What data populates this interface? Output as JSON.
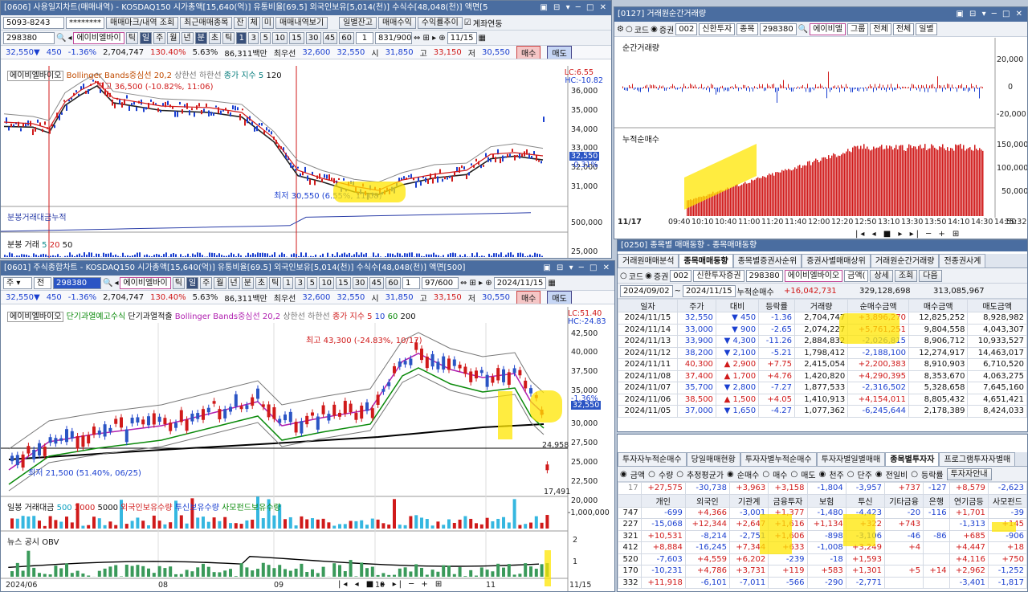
{
  "w1": {
    "title": "[0606] 사용일지차트(매매내역) - KOSDAQ150 시가총액[15,640(억)] 유통비율[69.5] 외국인보유[5,014(천)] 수식수[48,048(천)] 액면[5",
    "account": "5093-8243",
    "password": "********",
    "btns": [
      "매매마크/내역 조회",
      "최근매매종목",
      "잔",
      "체",
      "미",
      "매매내역보기",
      "일별잔고",
      "매매수익",
      "수익률추이"
    ],
    "chk": "계좌연동",
    "code": "298380",
    "name": "에이비엘바이",
    "periods": [
      "틱",
      "일",
      "주",
      "월",
      "년",
      "분",
      "초",
      "틱",
      "1",
      "3",
      "5",
      "10",
      "15",
      "30",
      "45",
      "60"
    ],
    "sel": "1",
    "count": "831/900",
    "date": "11/15",
    "quote": {
      "price": "32,550▼",
      "chg": "450",
      "pct": "-1.36%",
      "vol": "2,704,747",
      "ratio": "130.40%",
      "turn": "5.63%",
      "amt": "86,311백만",
      "ask_l": "최우선",
      "ask": "32,600",
      "bid": "32,550",
      "o_l": "시",
      "o": "31,850",
      "h_l": "고",
      "h": "33,150",
      "l_l": "저",
      "l": "30,550",
      "buy": "매수",
      "sell": "매도"
    },
    "legend": [
      "에이비엘바이오",
      "Bollinger Bands중심선 20,2",
      "상한선",
      "하한선",
      "종가 지수 5",
      "120"
    ],
    "lc": "LC:6.55",
    "hc": "HC:-10.82",
    "hi_note": "최고 36,500 (-10.82%, 11:06)",
    "lo_note": "최저 30,550 (6.55%, 11:08)",
    "yaxis": [
      "36,000",
      "35,000",
      "34,000",
      "33,000",
      "32,000",
      "31,000"
    ],
    "price_tag": "32,550",
    "pct_tag": "-0.31%",
    "p2": "분봉거래대금누적",
    "p2ax": [
      "500,000"
    ],
    "p3": "분봉 거래",
    "p3n": [
      "5",
      "20",
      "50"
    ],
    "p3ax": [
      "25,000"
    ]
  },
  "w2": {
    "title": "[0127] 거래원순간거래량",
    "code": "002",
    "broker": "신한투자",
    "type": "종목",
    "stock": "298380",
    "name": "에이비엘",
    "g": "그룹",
    "s1": "전체",
    "s2": "전체",
    "s3": "일별",
    "r1": "코드",
    "r2": "증권",
    "p1": "순간거래량",
    "p2": "누적순매수",
    "ax1": [
      "20,000",
      "0",
      "-20,000"
    ],
    "ax2": [
      "150,000",
      "100,000",
      "50,000"
    ],
    "xt": [
      "11/17",
      "09:40",
      "10:10",
      "10:40",
      "11:00",
      "11:20",
      "11:40",
      "12:00",
      "12:20",
      "12:50",
      "13:10",
      "13:30",
      "13:50",
      "14:10",
      "14:30",
      "14:50",
      "15:32"
    ]
  },
  "w3": {
    "title": "[0250] 종목별 매매동향 - 종목매매동향",
    "tabs": [
      "거래원매매분석",
      "종목매매동향",
      "종목별증권사순위",
      "증권사별매매상위",
      "거래원순간거래량",
      "전종권사계"
    ],
    "code": "002",
    "broker": "신한투자증권",
    "stock": "298380",
    "name": "에이비엘바이오",
    "unit": "금액(",
    "mode": "상세",
    "q": "조회",
    "nx": "다음",
    "from": "2024/09/02",
    "to": "2024/11/15",
    "cum_l": "누적순매수",
    "cum": "+16,042,731",
    "cum2": "329,128,698",
    "cum3": "313,085,967",
    "head": [
      "일자",
      "주가",
      "대비",
      "등락률",
      "거래량",
      "순매수금액",
      "매수금액",
      "매도금액"
    ],
    "rows": [
      [
        "2024/11/15",
        "32,550",
        "▼",
        "450",
        "-1.36",
        "2,704,747",
        "+3,896,270",
        "12,825,252",
        "8,928,982"
      ],
      [
        "2024/11/14",
        "33,000",
        "▼",
        "900",
        "-2.65",
        "2,074,227",
        "+5,761,251",
        "9,804,558",
        "4,043,307"
      ],
      [
        "2024/11/13",
        "33,900",
        "▼",
        "4,300",
        "-11.26",
        "2,884,832",
        "-2,026,815",
        "8,906,712",
        "10,933,527"
      ],
      [
        "2024/11/12",
        "38,200",
        "▼",
        "2,100",
        "-5.21",
        "1,798,412",
        "-2,188,100",
        "12,274,917",
        "14,463,017"
      ],
      [
        "2024/11/11",
        "40,300",
        "▲",
        "2,900",
        "+7.75",
        "2,415,054",
        "+2,200,383",
        "8,910,903",
        "6,710,520"
      ],
      [
        "2024/11/08",
        "37,400",
        "▲",
        "1,700",
        "+4.76",
        "1,420,820",
        "+4,290,395",
        "8,353,670",
        "4,063,275"
      ],
      [
        "2024/11/07",
        "35,700",
        "▼",
        "2,800",
        "-7.27",
        "1,877,533",
        "-2,316,502",
        "5,328,658",
        "7,645,160"
      ],
      [
        "2024/11/06",
        "38,500",
        "▲",
        "1,500",
        "+4.05",
        "1,410,913",
        "+4,154,011",
        "8,805,432",
        "4,651,421"
      ],
      [
        "2024/11/05",
        "37,000",
        "▼",
        "1,650",
        "-4.27",
        "1,077,362",
        "-6,245,644",
        "2,178,389",
        "8,424,033"
      ]
    ]
  },
  "w4": {
    "tabs": [
      "투자자누적순매수",
      "당일매매현황",
      "투자자별누적순매수",
      "투자자별일별매매",
      "종목별투자자",
      "프로그램투자자별매"
    ],
    "opts": [
      "금액",
      "수량",
      "추정평균가",
      "순매수",
      "매수",
      "매도",
      "천주",
      "단주",
      "전일비",
      "등락률",
      "투자자안내"
    ],
    "sum": [
      "+27,575",
      "-30,738",
      "+3,963",
      "+3,158",
      "-1,804",
      "-3,957",
      "+737",
      "-127",
      "+8,579",
      "-2,623"
    ],
    "head": [
      "개인",
      "외국인",
      "기관계",
      "금융투자",
      "보험",
      "투신",
      "기타금융",
      "은행",
      "연기금등",
      "사모펀드"
    ],
    "rows": [
      [
        "747",
        "-699",
        "+4,366",
        "-3,001",
        "+1,377",
        "-1,480",
        "-4,423",
        "-20",
        "-116",
        "+1,701",
        "-39"
      ],
      [
        "227",
        "-15,068",
        "+12,344",
        "+2,647",
        "+1,616",
        "+1,134",
        "+322",
        "+743",
        "",
        "-1,313",
        "+145"
      ],
      [
        "321",
        "+10,531",
        "-8,214",
        "-2,751",
        "+1,606",
        "-898",
        "-3,106",
        "-46",
        "-86",
        "+685",
        "-906"
      ],
      [
        "412",
        "+8,884",
        "-16,245",
        "+7,344",
        "+633",
        "-1,008",
        "+3,249",
        "+4",
        "",
        "+4,447",
        "+18"
      ],
      [
        "520",
        "-7,603",
        "+4,559",
        "+6,202",
        "-239",
        "-18",
        "+1,593",
        "",
        "",
        "+4,116",
        "+750"
      ],
      [
        "170",
        "-10,231",
        "+4,786",
        "+3,731",
        "+119",
        "+583",
        "+1,301",
        "+5",
        "+14",
        "+2,962",
        "-1,252"
      ],
      [
        "332",
        "+11,918",
        "-6,101",
        "-7,011",
        "-566",
        "-290",
        "-2,771",
        "",
        "",
        "-3,401",
        "-1,817"
      ]
    ]
  },
  "w5": {
    "title": "[0601] 주식종합차트 - KOSDAQ150 시가총액[15,640(억)] 유통비율[69.5] 외국인보유[5,014(천)] 수식수[48,048(천)] 액면[500]",
    "code": "298380",
    "name": "에이비엘바이",
    "count": "97/600",
    "date": "2024/11/15",
    "legend": [
      "에이비엘바이오",
      "단기과열예고수식",
      "단기과열적출",
      "Bollinger Bands중심선 20,2",
      "상한선",
      "하한선",
      "종가 지수 5",
      "10",
      "60",
      "200"
    ],
    "lc": "LC:51.40",
    "hc": "HC:-24.83",
    "hi_note": "최고 43,300 (-24.83%, 10/17)",
    "lo_note": "최저 21,500 (51.40%, 06/25)",
    "yaxis": [
      "42,500",
      "40,000",
      "37,500",
      "35,000",
      "32,550",
      "30,000",
      "27,500",
      "25,000",
      "22,500",
      "20,000"
    ],
    "pct_tag": "-1.36%",
    "l1": "24,958",
    "l2": "17,491",
    "p2": [
      "일봉 거래대금",
      "500",
      "2000",
      "5000",
      "외국인보유수량",
      "투신보유수량",
      "사모펀드보유수량"
    ],
    "p2ax": "-1,000,000",
    "p3": [
      "뉴스",
      "공시",
      "OBV"
    ],
    "p3ax": [
      "2",
      "1"
    ],
    "xt": [
      "2024/06",
      "08",
      "09",
      "10",
      "11",
      "11/15"
    ]
  }
}
